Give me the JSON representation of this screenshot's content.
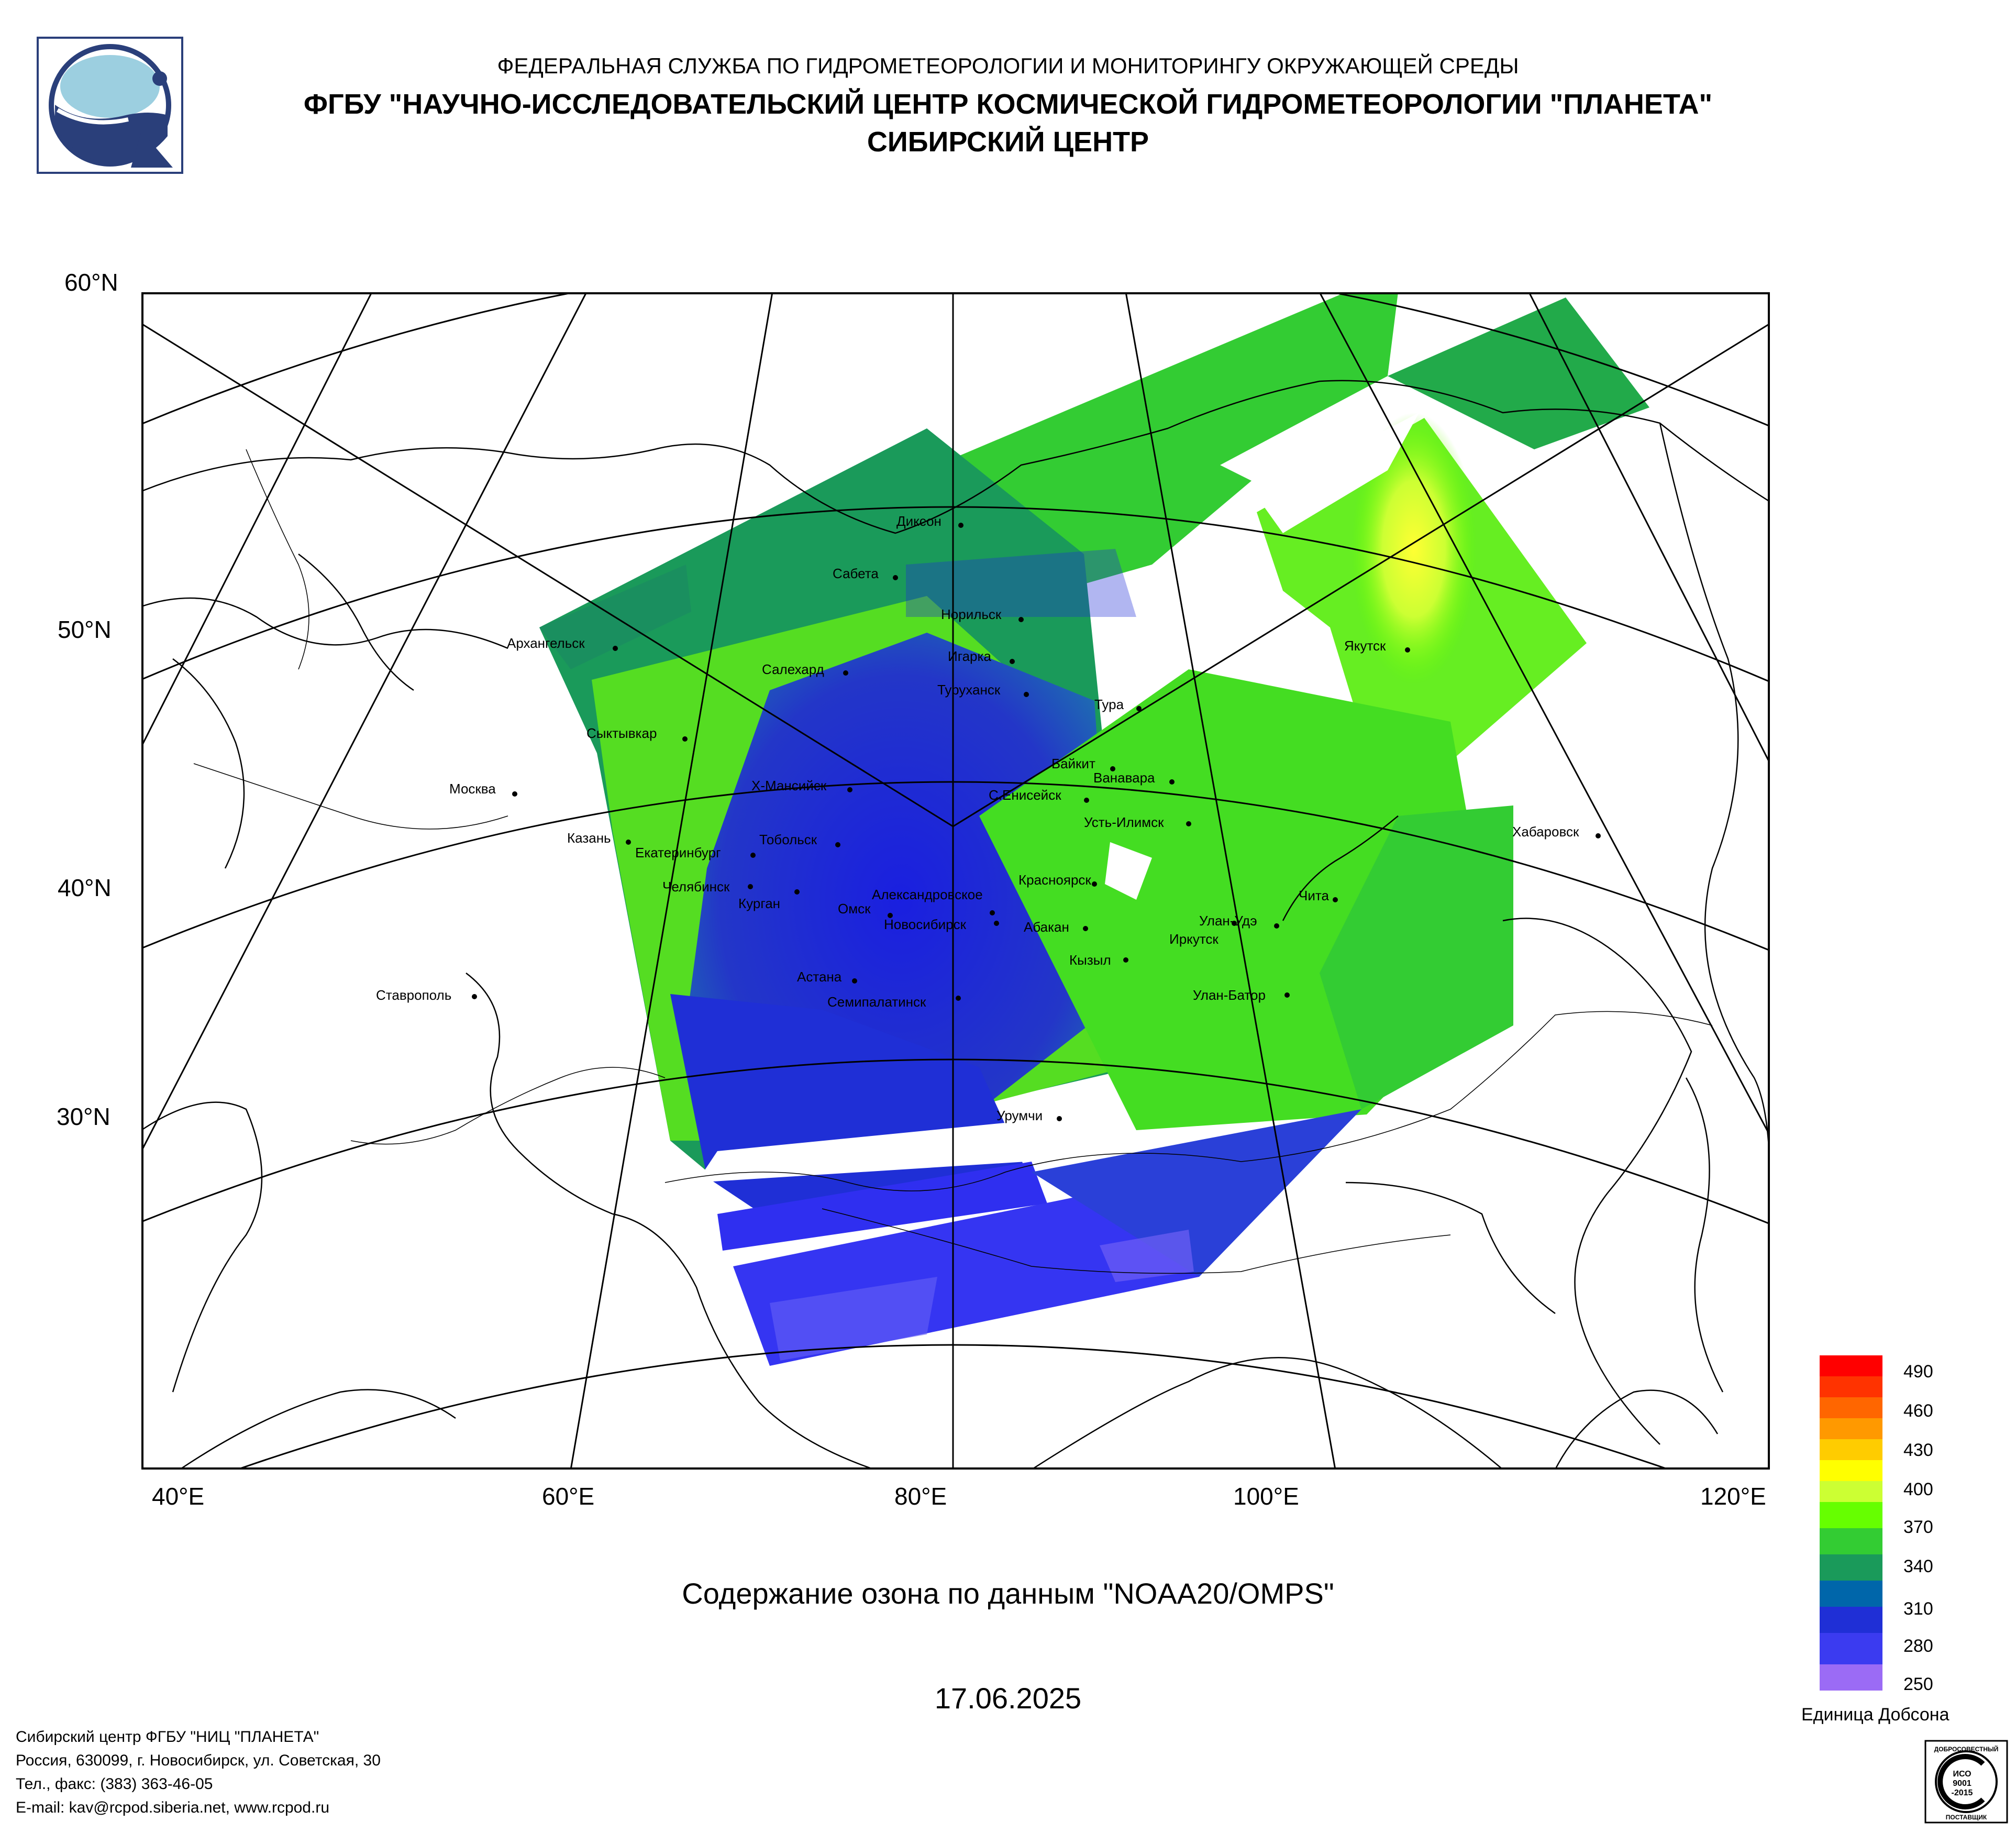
{
  "header": {
    "line1": "ФЕДЕРАЛЬНАЯ СЛУЖБА ПО ГИДРОМЕТЕОРОЛОГИИ И МОНИТОРИНГУ ОКРУЖАЮЩЕЙ СРЕДЫ",
    "line2": "ФГБУ \"НАУЧНО-ИССЛЕДОВАТЕЛЬСКИЙ ЦЕНТР КОСМИЧЕСКОЙ ГИДРОМЕТЕОРОЛОГИИ \"ПЛАНЕТА\"",
    "line3": "СИБИРСКИЙ ЦЕНТР"
  },
  "map": {
    "lat_labels": [
      "60°N",
      "50°N",
      "40°N",
      "30°N"
    ],
    "lon_labels": [
      "40°E",
      "60°E",
      "80°E",
      "100°E",
      "120°E"
    ],
    "cities": [
      "Диксон",
      "Сабета",
      "Норильск",
      "Архангельск",
      "Игарка",
      "Салехард",
      "Туруханск",
      "Тура",
      "Якутск",
      "Сыктывкар",
      "Байкит",
      "Ванавара",
      "Москва",
      "Х-Мансийск",
      "С.Енисейск",
      "Усть-Илимск",
      "Казань",
      "Тобольск",
      "Екатеринбург",
      "Хабаровск",
      "Челябинск",
      "Красноярск",
      "Александровское",
      "Курган",
      "Омск",
      "Чита",
      "Новосибирск",
      "Абакан",
      "Улан-Удэ",
      "Иркутск",
      "Кызыл",
      "Астана",
      "Ставрополь",
      "Семипалатинск",
      "Улан-Батор",
      "Урумчи"
    ]
  },
  "caption": {
    "title": "Содержание озона по данным \"NOAA20/OMPS\"",
    "date": "17.06.2025"
  },
  "legend": {
    "ticks": [
      "490",
      "460",
      "430",
      "400",
      "370",
      "340",
      "310",
      "280",
      "250"
    ],
    "unit": "Единица Добсона",
    "colors": [
      "#ff0000",
      "#ff3300",
      "#ff6600",
      "#ff9900",
      "#ffcc00",
      "#ffff00",
      "#ccff33",
      "#66ff00",
      "#33cc33",
      "#1a9a5a",
      "#0066aa",
      "#1f2fd6",
      "#3b3bf0",
      "#9b6bf5"
    ]
  },
  "footer": {
    "line1": "Сибирский центр ФГБУ \"НИЦ \"ПЛАНЕТА\"",
    "line2": "Россия, 630099, г. Новосибирск, ул. Советская, 30",
    "line3": "Тел., факс: (383) 363-46-05",
    "line4": "E-mail: kav@rcpod.siberia.net, www.rcpod.ru"
  },
  "badge": {
    "top": "ДОБРОСОВЕСТНЫЙ",
    "mid1": "ИСО",
    "mid2": "9001",
    "mid3": "-2015",
    "bottom": "ПОСТАВЩИК"
  }
}
